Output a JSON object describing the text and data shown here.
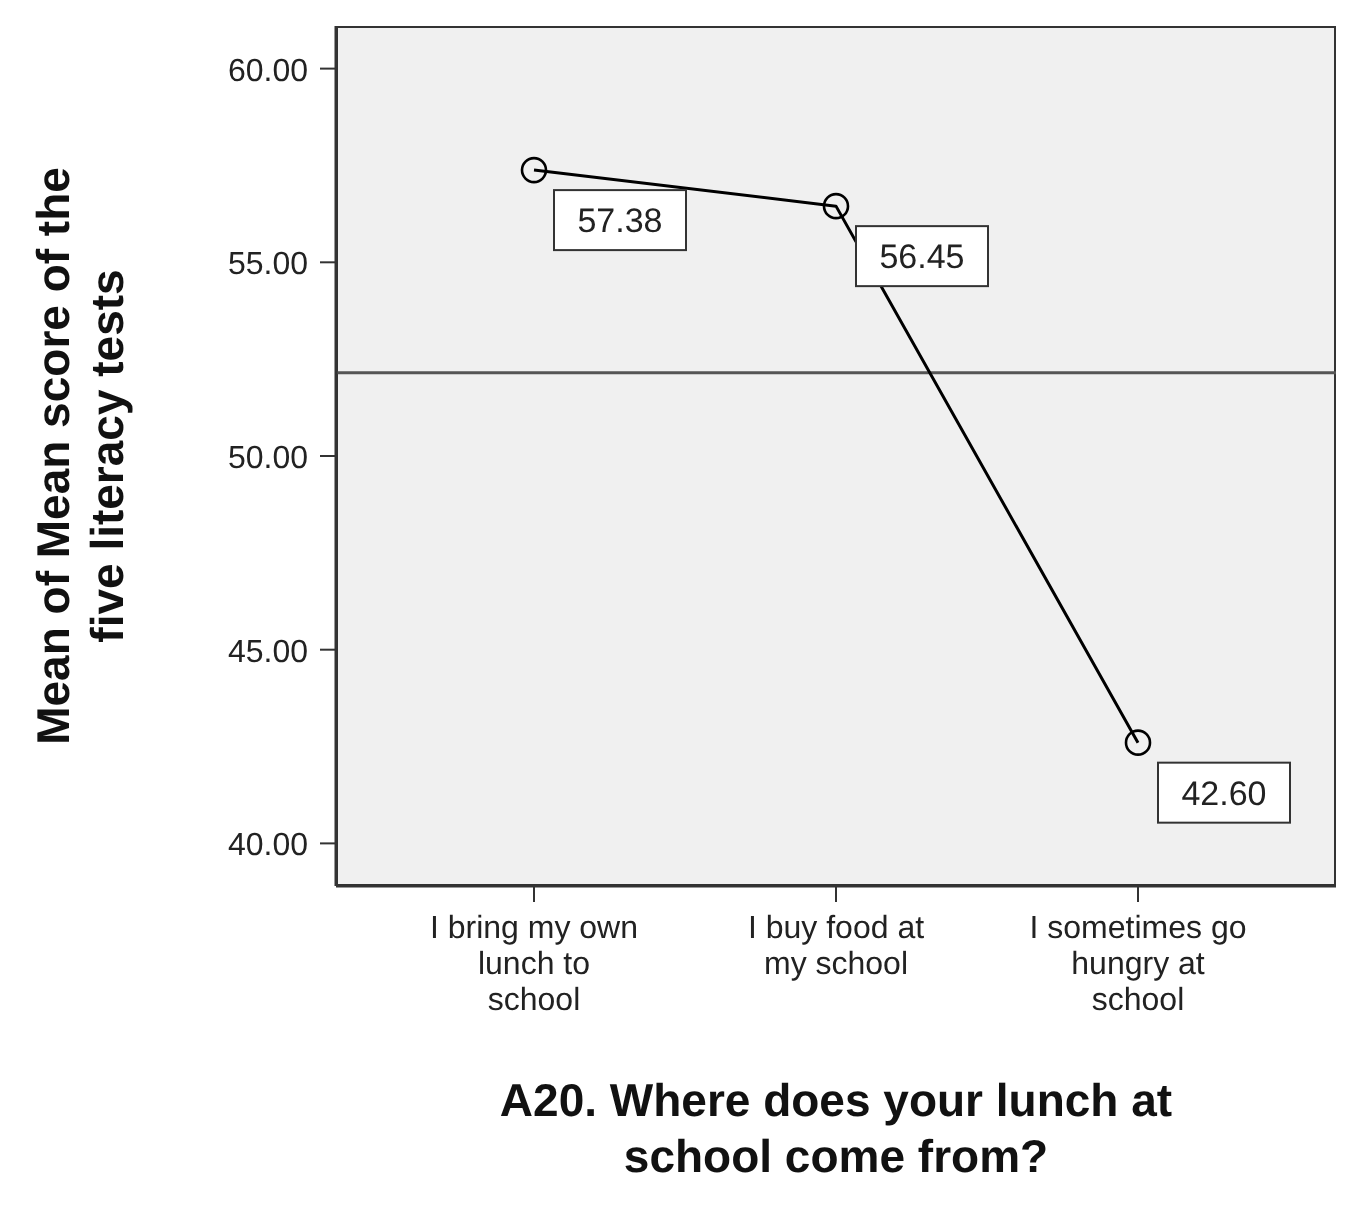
{
  "chart_data": {
    "type": "line",
    "xlabel": "A20. Where does your lunch at school come from?",
    "ylabel": "Mean of Mean score of the five literacy tests",
    "categories": [
      "I bring my own lunch to school",
      "I buy food at my school",
      "I sometimes go hungry at school"
    ],
    "series": [
      {
        "color": "#000000",
        "values": [
          57.38,
          56.45,
          42.6
        ],
        "value_labels": [
          "57.38",
          "56.45",
          "42.60"
        ]
      }
    ],
    "marker": "circle",
    "ylim": [
      38.9,
      61.1
    ],
    "yticks": [
      {
        "value": 40,
        "label": "40.00"
      },
      {
        "value": 45,
        "label": "45.00"
      },
      {
        "value": 50,
        "label": "50.00"
      },
      {
        "value": 55,
        "label": "55.00"
      },
      {
        "value": 60,
        "label": "60.00"
      }
    ],
    "ref_lines": [
      {
        "axis": "y",
        "value": 52.15,
        "color": "#555555"
      }
    ],
    "grid": false,
    "legend": false
  }
}
